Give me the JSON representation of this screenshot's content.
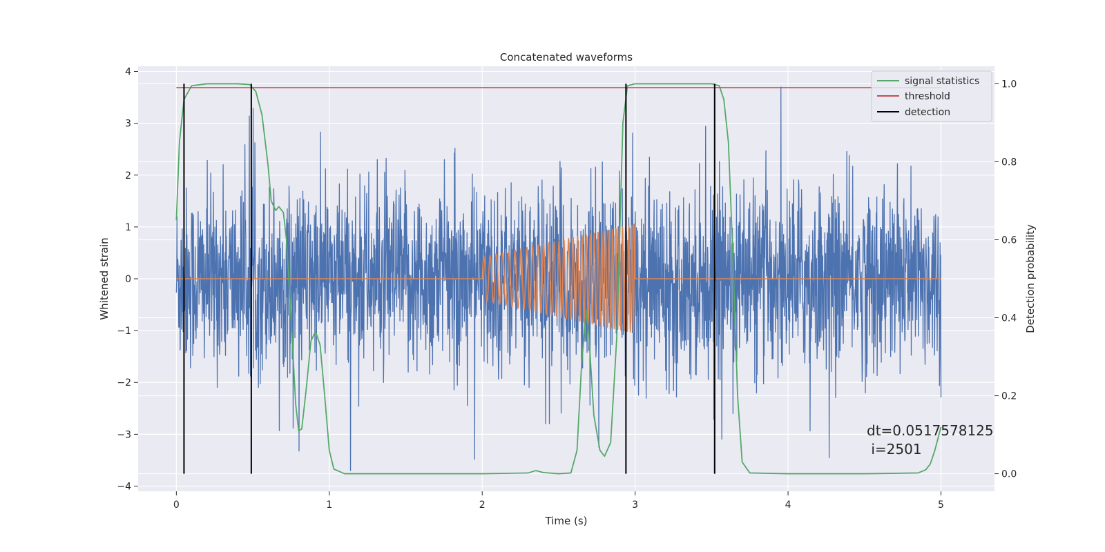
{
  "chart_data": {
    "type": "line",
    "title": "Concatenated waveforms",
    "xlabel": "Time (s)",
    "ylabel": "Whitened strain",
    "y2label": "Detection probability",
    "xlim": [
      -0.25,
      5.35
    ],
    "ylim": [
      -4.1,
      4.1
    ],
    "y2lim": [
      -0.045,
      1.045
    ],
    "x_ticks": [
      0,
      1,
      2,
      3,
      4,
      5
    ],
    "x_tick_labels": [
      "0",
      "1",
      "2",
      "3",
      "4",
      "5"
    ],
    "y_ticks": [
      -4,
      -3,
      -2,
      -1,
      0,
      1,
      2,
      3,
      4
    ],
    "y_tick_labels": [
      "−4",
      "−3",
      "−2",
      "−1",
      "0",
      "1",
      "2",
      "3",
      "4"
    ],
    "y2_ticks": [
      0.0,
      0.2,
      0.4,
      0.6,
      0.8,
      1.0
    ],
    "y2_tick_labels": [
      "0.0",
      "0.2",
      "0.4",
      "0.6",
      "0.8",
      "1.0"
    ],
    "grid": true,
    "legend_position": "top-right",
    "legend": [
      {
        "label": "signal statistics",
        "color": "#55a868"
      },
      {
        "label": "threshold",
        "color": "#c44e52"
      },
      {
        "label": "detection",
        "color": "#000000"
      }
    ],
    "annotation": [
      "dt=0.0517578125",
      " i=2501"
    ],
    "colors": {
      "noise": "#4c72b0",
      "injection": "#dd8452",
      "statistic": "#55a868",
      "threshold": "#c44e52",
      "detection": "#000000",
      "background": "#eaeaf2",
      "grid": "#ffffff"
    },
    "series": [
      {
        "role": "whitened noise",
        "axis": "left",
        "x_range": [
          0,
          5
        ],
        "typical_range": [
          -1.2,
          1.2
        ],
        "extremes": [
          -3.7,
          3.7
        ]
      },
      {
        "role": "injected chirp",
        "axis": "left",
        "x_range": [
          0,
          5
        ],
        "chirp_start": 2.0,
        "chirp_end": 3.0,
        "amplitude_start": 0.42,
        "amplitude_end": 1.05,
        "value_outside_chirp": 0
      },
      {
        "name": "signal statistics",
        "axis": "right",
        "points": [
          [
            0.0,
            0.65
          ],
          [
            0.02,
            0.85
          ],
          [
            0.05,
            0.96
          ],
          [
            0.1,
            0.995
          ],
          [
            0.2,
            1.0
          ],
          [
            0.4,
            1.0
          ],
          [
            0.48,
            0.998
          ],
          [
            0.52,
            0.98
          ],
          [
            0.56,
            0.92
          ],
          [
            0.6,
            0.79
          ],
          [
            0.62,
            0.7
          ],
          [
            0.65,
            0.675
          ],
          [
            0.67,
            0.685
          ],
          [
            0.7,
            0.67
          ],
          [
            0.72,
            0.6
          ],
          [
            0.75,
            0.4
          ],
          [
            0.78,
            0.18
          ],
          [
            0.8,
            0.11
          ],
          [
            0.82,
            0.115
          ],
          [
            0.85,
            0.22
          ],
          [
            0.88,
            0.34
          ],
          [
            0.91,
            0.365
          ],
          [
            0.94,
            0.33
          ],
          [
            0.97,
            0.2
          ],
          [
            1.0,
            0.06
          ],
          [
            1.03,
            0.012
          ],
          [
            1.1,
            0.0
          ],
          [
            1.5,
            0.0
          ],
          [
            2.0,
            0.0
          ],
          [
            2.3,
            0.002
          ],
          [
            2.35,
            0.008
          ],
          [
            2.4,
            0.003
          ],
          [
            2.5,
            0.0
          ],
          [
            2.58,
            0.002
          ],
          [
            2.62,
            0.06
          ],
          [
            2.65,
            0.28
          ],
          [
            2.68,
            0.42
          ],
          [
            2.7,
            0.34
          ],
          [
            2.73,
            0.15
          ],
          [
            2.77,
            0.06
          ],
          [
            2.8,
            0.045
          ],
          [
            2.84,
            0.08
          ],
          [
            2.88,
            0.35
          ],
          [
            2.92,
            0.9
          ],
          [
            2.95,
            0.995
          ],
          [
            3.0,
            1.0
          ],
          [
            3.5,
            1.0
          ],
          [
            3.55,
            0.995
          ],
          [
            3.58,
            0.96
          ],
          [
            3.61,
            0.85
          ],
          [
            3.64,
            0.55
          ],
          [
            3.67,
            0.2
          ],
          [
            3.7,
            0.03
          ],
          [
            3.75,
            0.002
          ],
          [
            4.0,
            0.0
          ],
          [
            4.5,
            0.0
          ],
          [
            4.85,
            0.002
          ],
          [
            4.9,
            0.01
          ],
          [
            4.93,
            0.025
          ],
          [
            4.96,
            0.06
          ],
          [
            5.0,
            0.12
          ]
        ]
      },
      {
        "name": "threshold",
        "axis": "right",
        "x": [
          0,
          5
        ],
        "value": 0.99
      },
      {
        "name": "detection",
        "axis": "right",
        "x": [
          0.05,
          0.49,
          2.94,
          3.52
        ],
        "y_range": [
          0,
          1
        ]
      }
    ]
  }
}
